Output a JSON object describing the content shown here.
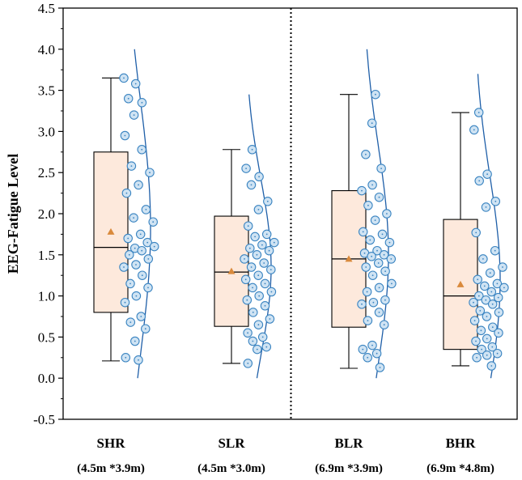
{
  "colors": {
    "box_fill": "#fde9dc",
    "box_stroke": "#000000",
    "mean_marker": "#d98a3c",
    "point_fill": "#cfe3f3",
    "point_stroke": "#3a84c1",
    "curve": "#1f5fa8",
    "divider": "#000000"
  },
  "chart_data": {
    "type": "box",
    "ylabel": "EEG-Fatigue Level",
    "xlabel": "",
    "ylim": [
      -0.5,
      4.5
    ],
    "yticks": [
      "-0.5",
      "0.0",
      "0.5",
      "1.0",
      "1.5",
      "2.0",
      "2.5",
      "3.0",
      "3.5",
      "4.0",
      "4.5"
    ],
    "divider_after_category": 2,
    "divider_style": "dotted",
    "categories": [
      {
        "name": "SHR",
        "sub": "(4.5m *3.9m)",
        "min": 0.21,
        "q1": 0.8,
        "median": 1.59,
        "q3": 2.75,
        "max": 3.65,
        "mean": 1.78,
        "curve_range": [
          0.0,
          4.0
        ],
        "points": [
          3.65,
          3.58,
          3.4,
          3.35,
          3.2,
          2.95,
          2.78,
          2.58,
          2.5,
          2.35,
          2.25,
          2.05,
          1.95,
          1.9,
          1.75,
          1.7,
          1.65,
          1.58,
          1.6,
          1.55,
          1.5,
          1.45,
          1.38,
          1.35,
          1.25,
          1.15,
          1.1,
          1.0,
          0.92,
          0.75,
          0.68,
          0.6,
          0.45,
          0.25,
          0.22
        ]
      },
      {
        "name": "SLR",
        "sub": "(4.5m *3.0m)",
        "min": 0.18,
        "q1": 0.63,
        "median": 1.29,
        "q3": 1.97,
        "max": 2.78,
        "mean": 1.3,
        "curve_range": [
          0.0,
          3.45
        ],
        "points": [
          2.78,
          2.55,
          2.45,
          2.35,
          2.15,
          2.05,
          1.85,
          1.75,
          1.72,
          1.65,
          1.62,
          1.58,
          1.55,
          1.5,
          1.45,
          1.4,
          1.35,
          1.32,
          1.25,
          1.2,
          1.15,
          1.1,
          1.05,
          1.0,
          0.95,
          0.88,
          0.8,
          0.72,
          0.65,
          0.55,
          0.5,
          0.45,
          0.38,
          0.35,
          0.18
        ]
      },
      {
        "name": "BLR",
        "sub": "(6.9m *3.9m)",
        "min": 0.12,
        "q1": 0.62,
        "median": 1.45,
        "q3": 2.28,
        "max": 3.45,
        "mean": 1.45,
        "curve_range": [
          0.0,
          4.0
        ],
        "points": [
          3.45,
          3.1,
          2.72,
          2.55,
          2.35,
          2.28,
          2.2,
          2.1,
          2.0,
          1.92,
          1.78,
          1.75,
          1.68,
          1.65,
          1.55,
          1.52,
          1.5,
          1.48,
          1.45,
          1.4,
          1.35,
          1.3,
          1.25,
          1.15,
          1.1,
          1.05,
          0.95,
          0.92,
          0.9,
          0.8,
          0.7,
          0.65,
          0.4,
          0.35,
          0.3,
          0.25,
          0.13
        ]
      },
      {
        "name": "BHR",
        "sub": "(6.9m *4.8m)",
        "min": 0.15,
        "q1": 0.35,
        "median": 1.0,
        "q3": 1.93,
        "max": 3.23,
        "mean": 1.14,
        "curve_range": [
          0.0,
          3.7
        ],
        "points": [
          3.23,
          3.02,
          2.48,
          2.4,
          2.15,
          2.08,
          1.77,
          1.55,
          1.45,
          1.35,
          1.28,
          1.2,
          1.15,
          1.12,
          1.1,
          1.05,
          1.0,
          0.98,
          0.95,
          0.92,
          0.9,
          0.82,
          0.8,
          0.75,
          0.7,
          0.62,
          0.58,
          0.55,
          0.48,
          0.45,
          0.38,
          0.35,
          0.3,
          0.28,
          0.25,
          0.15
        ]
      }
    ]
  }
}
